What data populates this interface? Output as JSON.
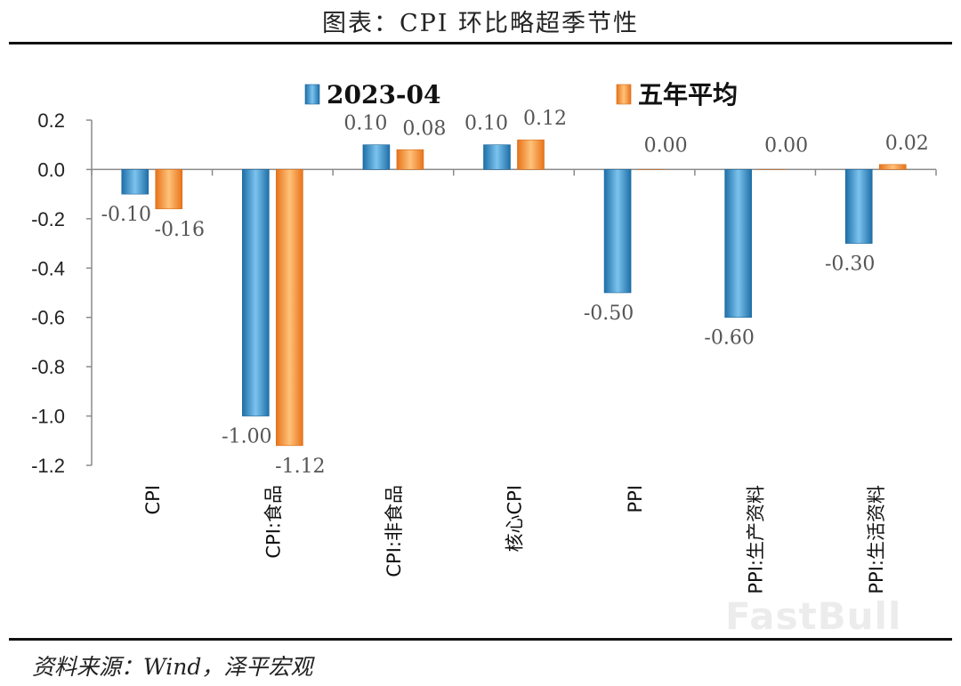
{
  "title": "图表：CPI 环比略超季节性",
  "source": "资料来源：Wind，泽平宏观",
  "watermark": "FastBull",
  "colors": {
    "series1": "#2E8BC8",
    "series2": "#F28A2C",
    "axis": "#8a8a8a",
    "label": "#555555"
  },
  "chart_data": {
    "type": "bar",
    "categories": [
      "CPI",
      "CPI:食品",
      "CPI:非食品",
      "核心CPI",
      "PPI",
      "PPI:生产资料",
      "PPI:生活资料"
    ],
    "series": [
      {
        "name": "2023-04",
        "values": [
          -0.1,
          -1.0,
          0.1,
          0.1,
          -0.5,
          -0.6,
          -0.3
        ],
        "labels": [
          "-0.10",
          "-1.00",
          "0.10",
          "0.10",
          "-0.50",
          "-0.60",
          "-0.30"
        ]
      },
      {
        "name": "五年平均",
        "values": [
          -0.16,
          -1.12,
          0.08,
          0.12,
          0.0,
          0.0,
          0.02
        ],
        "labels": [
          "-0.16",
          "-1.12",
          "0.08",
          "0.12",
          "0.00",
          "0.00",
          "0.02"
        ]
      }
    ],
    "yticks": [
      "0.2",
      "0.0",
      "-0.2",
      "-0.4",
      "-0.6",
      "-0.8",
      "-1.0",
      "-1.2"
    ],
    "ylim": [
      -1.2,
      0.2
    ],
    "legend_position": "top",
    "grid": false
  }
}
